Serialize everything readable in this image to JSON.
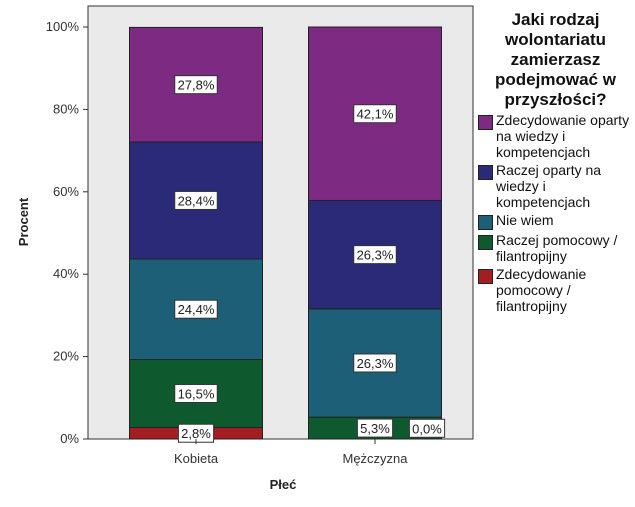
{
  "chart_data": {
    "type": "bar",
    "stacked": true,
    "categories": [
      "Kobieta",
      "Mężczyzna"
    ],
    "xlabel": "Płeć",
    "ylabel": "Procent",
    "ylim": [
      0,
      100
    ],
    "yticks": [
      "0%",
      "20%",
      "40%",
      "60%",
      "80%",
      "100%"
    ],
    "legend_title": "Jaki rodzaj wolontariatu zamierzasz podejmować w przyszłości?",
    "legend_position": "right",
    "series": [
      {
        "name": "Zdecydowanie pomocowy / filantropijny",
        "color": "#a31e22",
        "values": [
          2.8,
          0.0
        ],
        "labels": [
          "2,8%",
          "0,0%"
        ]
      },
      {
        "name": "Raczej pomocowy / filantropijny",
        "color": "#0e5a2e",
        "values": [
          16.5,
          5.3
        ],
        "labels": [
          "16,5%",
          "5,3%"
        ]
      },
      {
        "name": "Nie wiem",
        "color": "#1e5f78",
        "values": [
          24.4,
          26.3
        ],
        "labels": [
          "24,4%",
          "26,3%"
        ]
      },
      {
        "name": "Raczej oparty na wiedzy i kompetencjach",
        "color": "#2b2a78",
        "values": [
          28.4,
          26.3
        ],
        "labels": [
          "28,4%",
          "26,3%"
        ]
      },
      {
        "name": "Zdecydowanie oparty na wiedzy i kompetencjach",
        "color": "#7c2a82",
        "values": [
          27.8,
          42.1
        ],
        "labels": [
          "27,8%",
          "42,1%"
        ]
      }
    ]
  }
}
